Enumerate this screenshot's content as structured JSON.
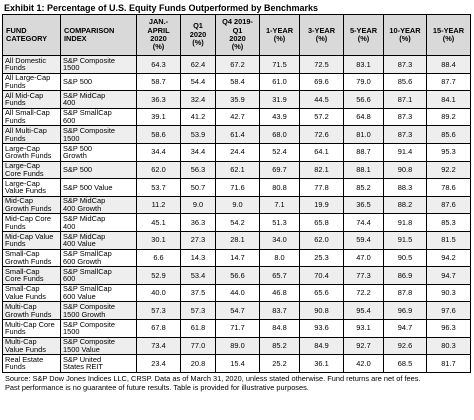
{
  "title": "Exhibit 1: Percentage of U.S. Equity Funds Outperformed by Benchmarks",
  "columns": [
    "FUND\nCATEGORY",
    "COMPARISON\nINDEX",
    "JAN.-\nAPRIL\n2020\n(%)",
    "Q1\n2020\n(%)",
    "Q4 2019-\nQ1\n2020\n(%)",
    "1-YEAR\n(%)",
    "3-YEAR\n(%)",
    "5-YEAR\n(%)",
    "10-YEAR\n(%)",
    "15-YEAR\n(%)"
  ],
  "rows": [
    {
      "category": "All Domestic\nFunds",
      "index": "S&P Composite\n1500",
      "values": [
        "64.3",
        "62.4",
        "67.2",
        "71.5",
        "72.5",
        "83.1",
        "87.3",
        "88.4"
      ]
    },
    {
      "category": "All Large-Cap\nFunds",
      "index": "S&P 500",
      "values": [
        "58.7",
        "54.4",
        "58.4",
        "61.0",
        "69.6",
        "79.0",
        "85.6",
        "87.7"
      ]
    },
    {
      "category": "All Mid-Cap\nFunds",
      "index": "S&P MidCap\n400",
      "values": [
        "36.3",
        "32.4",
        "35.9",
        "31.9",
        "44.5",
        "56.6",
        "87.1",
        "84.1"
      ]
    },
    {
      "category": "All Small-Cap\nFunds",
      "index": "S&P SmallCap\n600",
      "values": [
        "39.1",
        "41.2",
        "42.7",
        "43.9",
        "57.2",
        "64.8",
        "87.3",
        "89.2"
      ]
    },
    {
      "category": "All Multi-Cap\nFunds",
      "index": "S&P Composite\n1500",
      "values": [
        "58.6",
        "53.9",
        "61.4",
        "68.0",
        "72.6",
        "81.0",
        "87.3",
        "85.6"
      ]
    },
    {
      "category": "Large-Cap\nGrowth Funds",
      "index": "S&P 500\nGrowth",
      "values": [
        "34.4",
        "34.4",
        "24.4",
        "52.4",
        "64.1",
        "88.7",
        "91.4",
        "95.3"
      ]
    },
    {
      "category": "Large-Cap\nCore Funds",
      "index": "S&P 500",
      "values": [
        "62.0",
        "56.3",
        "62.1",
        "69.7",
        "82.1",
        "88.1",
        "90.8",
        "92.2"
      ]
    },
    {
      "category": "Large-Cap\nValue Funds",
      "index": "S&P 500 Value",
      "values": [
        "53.7",
        "50.7",
        "71.6",
        "80.8",
        "77.8",
        "85.2",
        "88.3",
        "78.6"
      ]
    },
    {
      "category": "Mid-Cap\nGrowth Funds",
      "index": "S&P MidCap\n400 Growth",
      "values": [
        "11.2",
        "9.0",
        "9.0",
        "7.1",
        "19.9",
        "36.5",
        "88.2",
        "87.6"
      ]
    },
    {
      "category": "Mid-Cap Core\nFunds",
      "index": "S&P MidCap\n400",
      "values": [
        "45.1",
        "36.3",
        "54.2",
        "51.3",
        "65.8",
        "74.4",
        "91.8",
        "85.3"
      ]
    },
    {
      "category": "Mid-Cap Value\nFunds",
      "index": "S&P MidCap\n400 Value",
      "values": [
        "30.1",
        "27.3",
        "28.1",
        "34.0",
        "62.0",
        "59.4",
        "91.5",
        "81.5"
      ]
    },
    {
      "category": "Small-Cap\nGrowth Funds",
      "index": "S&P SmallCap\n600 Growth",
      "values": [
        "6.6",
        "14.3",
        "14.7",
        "8.0",
        "25.3",
        "47.0",
        "90.5",
        "94.2"
      ]
    },
    {
      "category": "Small-Cap\nCore Funds",
      "index": "S&P SmallCap\n600",
      "values": [
        "52.9",
        "53.4",
        "56.6",
        "65.7",
        "70.4",
        "77.3",
        "86.9",
        "94.7"
      ]
    },
    {
      "category": "Small-Cap\nValue Funds",
      "index": "S&P SmallCap\n600 Value",
      "values": [
        "40.0",
        "37.5",
        "44.0",
        "46.8",
        "65.6",
        "72.2",
        "87.8",
        "90.3"
      ]
    },
    {
      "category": "Multi-Cap\nGrowth Funds",
      "index": "S&P Composite\n1500 Growth",
      "values": [
        "57.3",
        "57.3",
        "54.7",
        "83.7",
        "90.8",
        "95.4",
        "96.9",
        "97.6"
      ]
    },
    {
      "category": "Multi-Cap Core\nFunds",
      "index": "S&P Composite\n1500",
      "values": [
        "67.8",
        "61.8",
        "71.7",
        "84.8",
        "93.6",
        "93.1",
        "94.7",
        "96.3"
      ]
    },
    {
      "category": "Multi-Cap\nValue Funds",
      "index": "S&P Composite\n1500 Value",
      "values": [
        "73.4",
        "77.0",
        "89.0",
        "85.2",
        "84.9",
        "92.7",
        "92.6",
        "80.3"
      ]
    },
    {
      "category": "Real Estate\nFunds",
      "index": "S&P United\nStates REIT",
      "values": [
        "23.4",
        "20.8",
        "15.4",
        "25.2",
        "36.1",
        "42.0",
        "68.5",
        "81.7"
      ]
    }
  ],
  "footer": {
    "line1": "Source: S&P Dow Jones Indices LLC, CRSP. Data as of March 31, 2020, unless stated otherwise. Fund returns are net of fees.",
    "line2": "Past performance is no guarantee of future results. Table is provided for illustrative purposes."
  }
}
